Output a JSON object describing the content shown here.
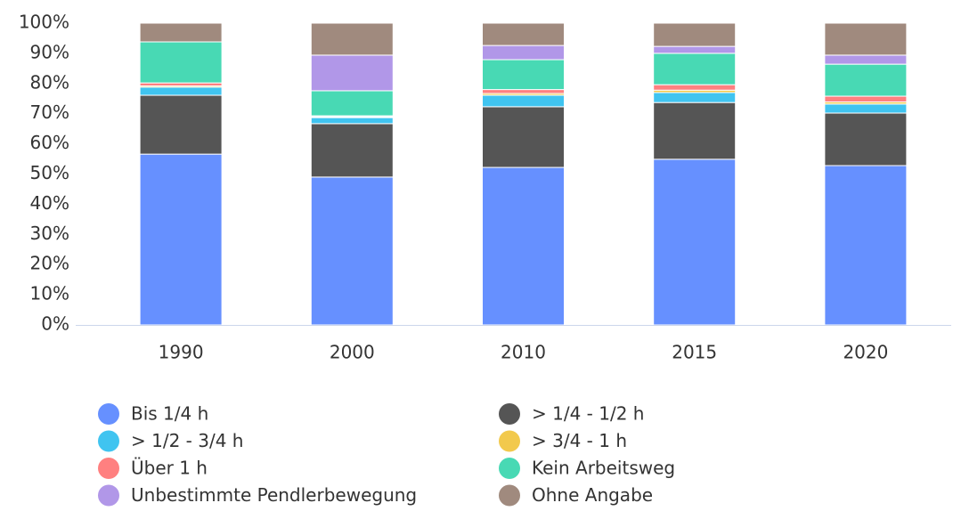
{
  "chart_data": {
    "type": "stacked_bar",
    "categories": [
      "1990",
      "2000",
      "2010",
      "2015",
      "2020"
    ],
    "series": [
      {
        "name": "Bis 1/4 h",
        "color": "#6690ff",
        "values": [
          56.6,
          49.0,
          52.2,
          54.9,
          52.8
        ]
      },
      {
        "name": "> 1/4 - 1/2 h",
        "color": "#555555",
        "values": [
          19.5,
          17.7,
          20.1,
          18.8,
          17.4
        ]
      },
      {
        "name": "> 1/2 - 3/4 h",
        "color": "#40c4f0",
        "values": [
          2.7,
          2.0,
          3.8,
          3.3,
          3.0
        ]
      },
      {
        "name": "> 3/4 - 1 h",
        "color": "#f2c94c",
        "values": [
          0.4,
          0.3,
          0.6,
          0.8,
          0.7
        ]
      },
      {
        "name": "Über 1 h",
        "color": "#ff8080",
        "values": [
          1.0,
          0.3,
          1.3,
          1.8,
          1.9
        ]
      },
      {
        "name": "Kein Arbeitsweg",
        "color": "#48d9b4",
        "values": [
          13.6,
          8.3,
          9.9,
          10.4,
          10.6
        ]
      },
      {
        "name": "Unbestimmte Pendlerbewegung",
        "color": "#b197e8",
        "values": [
          0,
          11.8,
          4.7,
          2.3,
          3.0
        ]
      },
      {
        "name": "Ohne Angabe",
        "color": "#a08a7e",
        "values": [
          6.2,
          10.6,
          7.4,
          7.7,
          10.6
        ]
      }
    ],
    "ylim": [
      0,
      100
    ],
    "yticks": [
      {
        "value": 0,
        "label": "0%"
      },
      {
        "value": 10,
        "label": "10%"
      },
      {
        "value": 20,
        "label": "20%"
      },
      {
        "value": 30,
        "label": "30%"
      },
      {
        "value": 40,
        "label": "40%"
      },
      {
        "value": 50,
        "label": "50%"
      },
      {
        "value": 60,
        "label": "60%"
      },
      {
        "value": 70,
        "label": "70%"
      },
      {
        "value": 80,
        "label": "80%"
      },
      {
        "value": 90,
        "label": "90%"
      },
      {
        "value": 100,
        "label": "100%"
      }
    ],
    "grid": false,
    "legend": "bottom"
  }
}
